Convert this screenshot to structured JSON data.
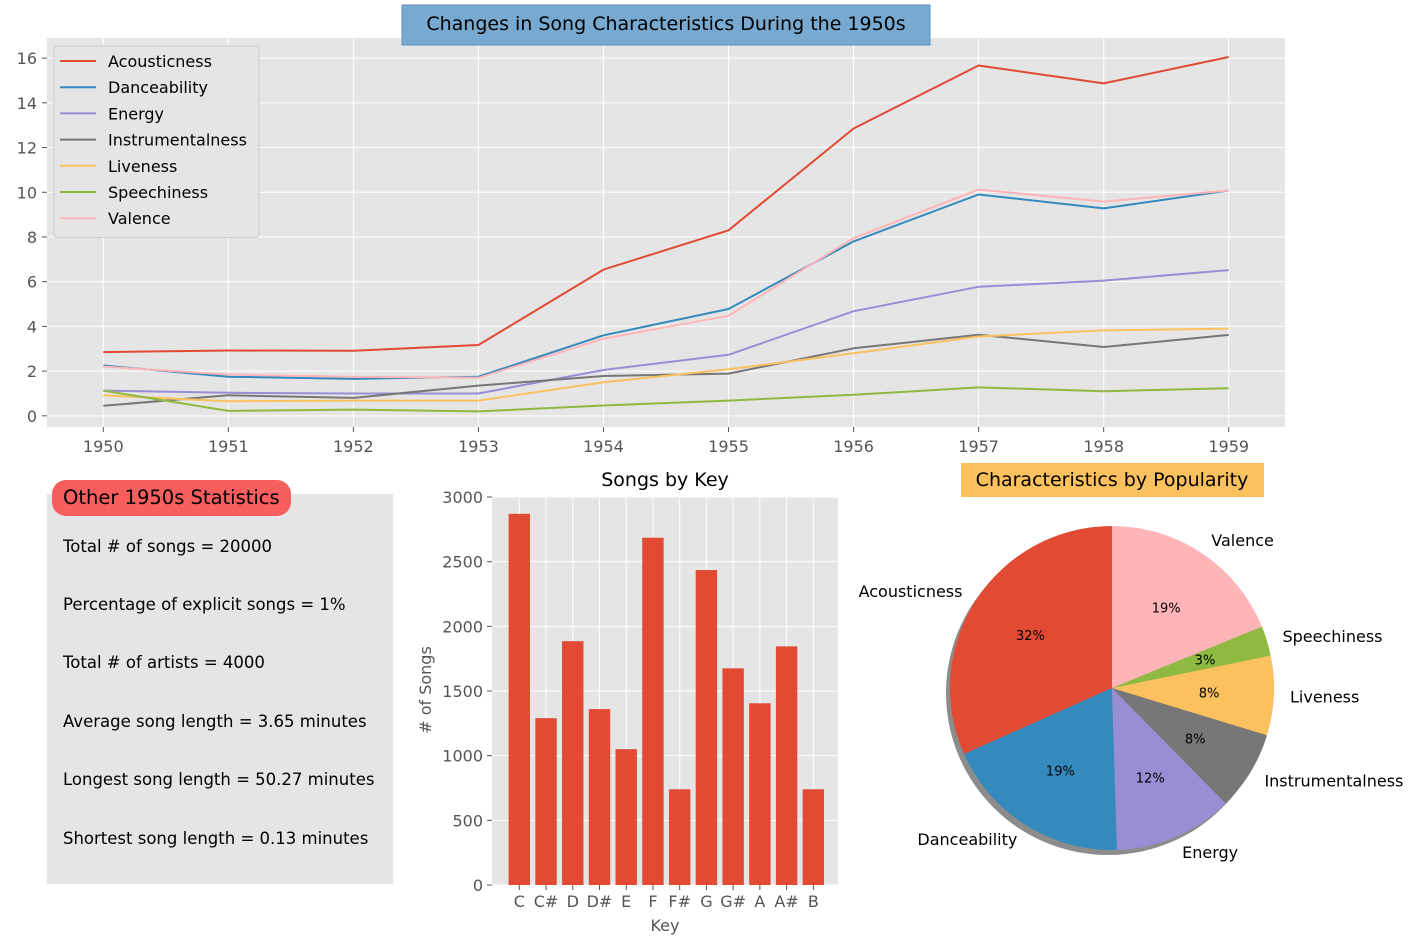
{
  "chart_data": [
    {
      "type": "line",
      "title": "Changes in Song Characteristics During the 1950s",
      "title_background": "#78a9d0",
      "x": [
        1950,
        1951,
        1952,
        1953,
        1954,
        1955,
        1956,
        1957,
        1958,
        1959
      ],
      "xlim": [
        1949.55,
        1959.45
      ],
      "ylim": [
        -0.5,
        16.9
      ],
      "yticks": [
        0,
        2,
        4,
        6,
        8,
        10,
        12,
        14,
        16
      ],
      "grid": true,
      "legend": "top-left",
      "series": [
        {
          "name": "Acousticness",
          "color": "#e24a33",
          "values": [
            2.85,
            2.92,
            2.91,
            3.17,
            6.54,
            8.3,
            12.85,
            15.67,
            14.87,
            16.05
          ]
        },
        {
          "name": "Danceability",
          "color": "#348abd",
          "values": [
            2.25,
            1.75,
            1.65,
            1.75,
            3.6,
            4.78,
            7.8,
            9.9,
            9.28,
            10.08
          ]
        },
        {
          "name": "Energy",
          "color": "#988ed5",
          "values": [
            1.13,
            1.03,
            1.0,
            1.0,
            2.05,
            2.73,
            4.68,
            5.77,
            6.05,
            6.52
          ]
        },
        {
          "name": "Instrumentalness",
          "color": "#777777",
          "values": [
            0.45,
            0.92,
            0.8,
            1.35,
            1.78,
            1.89,
            3.02,
            3.63,
            3.08,
            3.62
          ]
        },
        {
          "name": "Liveness",
          "color": "#fbc15e",
          "values": [
            0.92,
            0.65,
            0.68,
            0.68,
            1.5,
            2.08,
            2.8,
            3.55,
            3.82,
            3.9
          ]
        },
        {
          "name": "Speechiness",
          "color": "#8eba42",
          "values": [
            1.13,
            0.22,
            0.28,
            0.2,
            0.46,
            0.68,
            0.94,
            1.27,
            1.1,
            1.23
          ]
        },
        {
          "name": "Valence",
          "color": "#ffb5b8",
          "values": [
            2.2,
            1.85,
            1.75,
            1.7,
            3.45,
            4.48,
            7.95,
            10.12,
            9.58,
            10.08
          ]
        }
      ]
    },
    {
      "type": "bar",
      "title": "Songs by Key",
      "xlabel": "Key",
      "ylabel": "# of Songs",
      "categories": [
        "C",
        "C#",
        "D",
        "D#",
        "E",
        "F",
        "F#",
        "G",
        "G#",
        "A",
        "A#",
        "B"
      ],
      "values": [
        2870,
        1290,
        1885,
        1360,
        1050,
        2685,
        740,
        2435,
        1675,
        1405,
        1845,
        740
      ],
      "ylim": [
        0,
        3000
      ],
      "yticks": [
        0,
        500,
        1000,
        1500,
        2000,
        2500,
        3000
      ],
      "bar_color": "#e24a33",
      "grid": true
    },
    {
      "type": "pie",
      "title": "Characteristics by Popularity",
      "title_background": "#fbc15e",
      "labels": [
        "Acousticness",
        "Danceability",
        "Energy",
        "Instrumentalness",
        "Liveness",
        "Speechiness",
        "Valence"
      ],
      "values": [
        32,
        19,
        12,
        8,
        8,
        3,
        19
      ],
      "percent_labels": [
        "32%",
        "19%",
        "12%",
        "8%",
        "8%",
        "3%",
        "19%"
      ],
      "colors": [
        "#e24a33",
        "#348abd",
        "#988ed5",
        "#777777",
        "#fbc15e",
        "#8eba42",
        "#ffb5b8"
      ],
      "start_angle": 90,
      "shadow": true
    }
  ],
  "stats": {
    "title": "Other 1950s Statistics",
    "lines": [
      "Total # of songs = 20000",
      "Percentage of explicit songs = 1%",
      "Total # of artists = 4000",
      "Average song length = 3.65 minutes",
      "Longest song length = 50.27 minutes",
      "Shortest song length = 0.13 minutes"
    ]
  }
}
